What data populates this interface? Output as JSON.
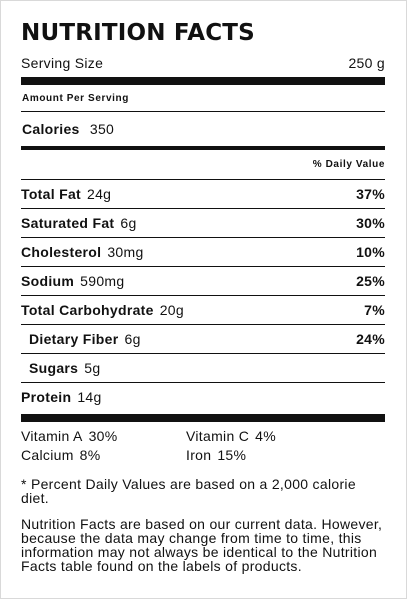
{
  "title": "NUTRITION FACTS",
  "serving": {
    "label": "Serving Size",
    "value": "250 g"
  },
  "amount_per_serving": "Amount Per Serving",
  "calories": {
    "label": "Calories",
    "value": "350"
  },
  "daily_value_header": "% Daily Value",
  "nutrients": [
    {
      "label": "Total Fat",
      "amount": "24g",
      "percent": "37%"
    },
    {
      "label": "Saturated Fat",
      "amount": "6g",
      "percent": "30%"
    },
    {
      "label": "Cholesterol",
      "amount": "30mg",
      "percent": "10%"
    },
    {
      "label": "Sodium",
      "amount": "590mg",
      "percent": "25%"
    },
    {
      "label": "Total Carbohydrate",
      "amount": "20g",
      "percent": "7%"
    },
    {
      "label": "Dietary Fiber",
      "amount": "6g",
      "percent": "24%"
    },
    {
      "label": "Sugars",
      "amount": "5g",
      "percent": ""
    }
  ],
  "protein": {
    "label": "Protein",
    "amount": "14g"
  },
  "vitamins": [
    {
      "label": "Vitamin A",
      "value": "30%"
    },
    {
      "label": "Vitamin C",
      "value": "4%"
    },
    {
      "label": "Calcium",
      "value": "8%"
    },
    {
      "label": "Iron",
      "value": "15%"
    }
  ],
  "footnote_1": "* Percent Daily Values are based on a 2,000 calorie diet.",
  "footnote_2": "Nutrition Facts are based on our current data. However, because the data may change from time to time, this information may not always be identical to the Nutrition Facts table found on the labels of products."
}
